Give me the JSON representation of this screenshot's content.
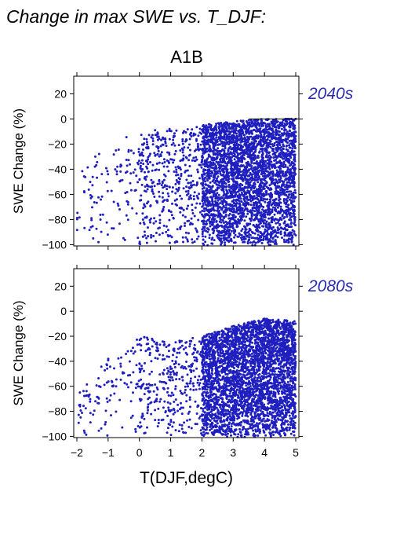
{
  "figure_title": "Change in max SWE vs. T_DJF:",
  "scenario": "A1B",
  "colors": {
    "points": "#1f1fbf",
    "axis": "#000000",
    "period_label": "#2a2ab0"
  },
  "chart_data": [
    {
      "type": "scatter",
      "period_label": "2040s",
      "ylabel": "SWE Change (%)",
      "xlabel": "",
      "xlim": [
        -2.1,
        5.1
      ],
      "ylim": [
        -101,
        34
      ],
      "x_ticks": [],
      "y_ticks": [
        20,
        0,
        -20,
        -40,
        -60,
        -80,
        -100
      ],
      "reference_line_y": 0,
      "grid": false,
      "trend": {
        "x": [
          -2,
          -1,
          0,
          1,
          2,
          3,
          4,
          5
        ],
        "upper_y": [
          -40,
          -20,
          -10,
          -8,
          -5,
          -2,
          0,
          0
        ],
        "lower_y": [
          -100,
          -100,
          -100,
          -100,
          -100,
          -100,
          -100,
          -100
        ]
      },
      "density_by_x": [
        {
          "x_range": [
            -2,
            0
          ],
          "relative_count": 1
        },
        {
          "x_range": [
            0,
            2
          ],
          "relative_count": 4
        },
        {
          "x_range": [
            2,
            3
          ],
          "relative_count": 10
        },
        {
          "x_range": [
            3,
            5
          ],
          "relative_count": 20
        }
      ]
    },
    {
      "type": "scatter",
      "period_label": "2080s",
      "ylabel": "SWE Change (%)",
      "xlabel": "T(DJF,degC)",
      "xlim": [
        -2.1,
        5.1
      ],
      "ylim": [
        -101,
        34
      ],
      "x_ticks": [
        -2,
        -1,
        0,
        1,
        2,
        3,
        4,
        5
      ],
      "y_ticks": [
        20,
        0,
        -20,
        -40,
        -60,
        -80,
        -100
      ],
      "reference_line_y": null,
      "grid": false,
      "trend": {
        "x": [
          -2,
          -1,
          0,
          1,
          2,
          3,
          4,
          5
        ],
        "upper_y": [
          -68,
          -35,
          -20,
          -25,
          -20,
          -12,
          -6,
          -8
        ],
        "lower_y": [
          -100,
          -100,
          -100,
          -100,
          -100,
          -100,
          -100,
          -100
        ]
      },
      "density_by_x": [
        {
          "x_range": [
            -2,
            0
          ],
          "relative_count": 1
        },
        {
          "x_range": [
            0,
            2
          ],
          "relative_count": 3
        },
        {
          "x_range": [
            2,
            3
          ],
          "relative_count": 10
        },
        {
          "x_range": [
            3,
            5
          ],
          "relative_count": 22
        }
      ]
    }
  ]
}
